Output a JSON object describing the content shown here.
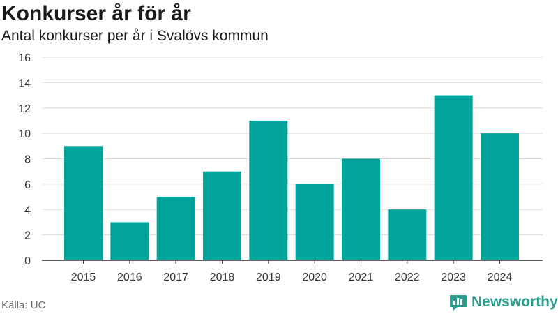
{
  "title": "Konkurser år för år",
  "subtitle": "Antal konkurser per år i Svalövs kommun",
  "source": "Källa: UC",
  "brand": {
    "name": "Newsworthy",
    "icon": "newsworthy-logo-icon",
    "color": "#2a9d8f"
  },
  "colors": {
    "bar": "#00a39a",
    "grid": "#dcdcdc",
    "axis": "#333333"
  },
  "chart_data": {
    "type": "bar",
    "categories": [
      "2015",
      "2016",
      "2017",
      "2018",
      "2019",
      "2020",
      "2021",
      "2022",
      "2023",
      "2024"
    ],
    "values": [
      9,
      3,
      5,
      7,
      11,
      6,
      8,
      4,
      13,
      10
    ],
    "title": "Konkurser år för år",
    "subtitle": "Antal konkurser per år i Svalövs kommun",
    "xlabel": "",
    "ylabel": "",
    "ylim": [
      0,
      16
    ],
    "yticks": [
      0,
      2,
      4,
      6,
      8,
      10,
      12,
      14,
      16
    ],
    "grid": true,
    "legend": "none"
  }
}
